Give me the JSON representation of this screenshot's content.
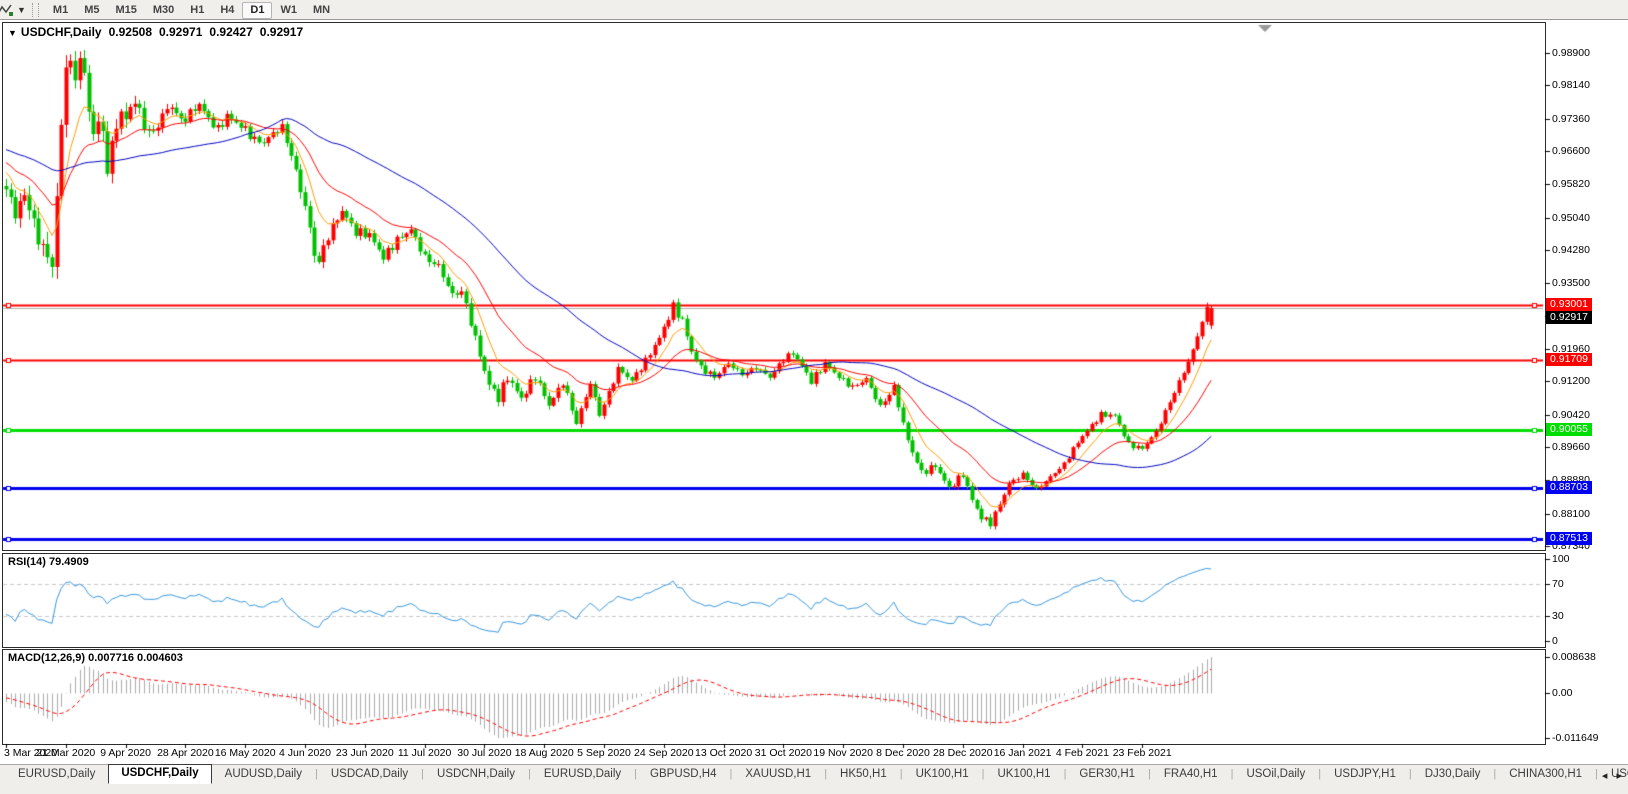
{
  "toolbar": {
    "timeframes": [
      "M1",
      "M5",
      "M15",
      "M30",
      "H1",
      "H4",
      "D1",
      "W1",
      "MN"
    ],
    "active_timeframe": "D1"
  },
  "chart_header": {
    "symbol": "USDCHF,Daily",
    "open": "0.92508",
    "high": "0.92971",
    "low": "0.92427",
    "close": "0.92917"
  },
  "indicators": {
    "rsi_label": "RSI(14) 79.4909",
    "macd_label": "MACD(12,26,9) 0.007716 0.004603"
  },
  "axes": {
    "price_ticks": [
      "0.98900",
      "0.98140",
      "0.97360",
      "0.96600",
      "0.95820",
      "0.95040",
      "0.94280",
      "0.93500",
      "0.92740",
      "0.91960",
      "0.91200",
      "0.90420",
      "0.89660",
      "0.88880",
      "0.88100",
      "0.87340"
    ],
    "rsi_ticks": [
      {
        "value": 100,
        "label": "100"
      },
      {
        "value": 70,
        "label": "70"
      },
      {
        "value": 30,
        "label": "30"
      },
      {
        "value": 0,
        "label": "0"
      }
    ],
    "macd_ticks": {
      "top": "0.008638",
      "zero": "0.00",
      "bottom": "-0.011649"
    },
    "dates": [
      "3 Mar 2020",
      "21 Mar 2020",
      "9 Apr 2020",
      "28 Apr 2020",
      "16 May 2020",
      "4 Jun 2020",
      "23 Jun 2020",
      "11 Jul 2020",
      "30 Jul 2020",
      "18 Aug 2020",
      "5 Sep 2020",
      "24 Sep 2020",
      "13 Oct 2020",
      "31 Oct 2020",
      "19 Nov 2020",
      "8 Dec 2020",
      "28 Dec 2020",
      "16 Jan 2021",
      "4 Feb 2021",
      "23 Feb 2021"
    ]
  },
  "chart_data": {
    "type": "candlestick",
    "title": "USDCHF,Daily",
    "visible_range_top": 0.996,
    "visible_range_bottom": 0.8727,
    "candle_count": 263,
    "gridline_every_n_candles": 13,
    "price_path_anchors": [
      [
        -60,
        0.98
      ],
      [
        -45,
        0.972
      ],
      [
        -30,
        0.966
      ],
      [
        -15,
        0.963
      ],
      [
        -8,
        0.967
      ],
      [
        -3,
        0.962
      ],
      [
        0,
        0.957
      ],
      [
        2,
        0.9515
      ],
      [
        4,
        0.9555
      ],
      [
        6,
        0.95
      ],
      [
        7,
        0.943
      ],
      [
        8,
        0.9465
      ],
      [
        9,
        0.9385
      ],
      [
        10,
        0.9405
      ],
      [
        11,
        0.955
      ],
      [
        12,
        0.972
      ],
      [
        13,
        0.985
      ],
      [
        14,
        0.989
      ],
      [
        15,
        0.98
      ],
      [
        16,
        0.99
      ],
      [
        17,
        0.983
      ],
      [
        18,
        0.9755
      ],
      [
        19,
        0.97
      ],
      [
        20,
        0.9735
      ],
      [
        21,
        0.969
      ],
      [
        22,
        0.963
      ],
      [
        23,
        0.9665
      ],
      [
        24,
        0.972
      ],
      [
        25,
        0.9755
      ],
      [
        26,
        0.973
      ],
      [
        27,
        0.9762
      ],
      [
        28,
        0.978
      ],
      [
        30,
        0.9718
      ],
      [
        32,
        0.97
      ],
      [
        34,
        0.9745
      ],
      [
        36,
        0.9766
      ],
      [
        38,
        0.973
      ],
      [
        40,
        0.9748
      ],
      [
        42,
        0.977
      ],
      [
        44,
        0.9736
      ],
      [
        46,
        0.971
      ],
      [
        48,
        0.9742
      ],
      [
        50,
        0.9726
      ],
      [
        52,
        0.971
      ],
      [
        54,
        0.9686
      ],
      [
        56,
        0.968
      ],
      [
        58,
        0.9702
      ],
      [
        60,
        0.9716
      ],
      [
        62,
        0.965
      ],
      [
        63,
        0.961
      ],
      [
        65,
        0.953
      ],
      [
        67,
        0.942
      ],
      [
        68,
        0.94
      ],
      [
        70,
        0.9462
      ],
      [
        73,
        0.952
      ],
      [
        76,
        0.947
      ],
      [
        79,
        0.9464
      ],
      [
        82,
        0.941
      ],
      [
        85,
        0.9452
      ],
      [
        88,
        0.9476
      ],
      [
        91,
        0.941
      ],
      [
        94,
        0.939
      ],
      [
        97,
        0.9322
      ],
      [
        99,
        0.9332
      ],
      [
        101,
        0.926
      ],
      [
        103,
        0.918
      ],
      [
        105,
        0.9112
      ],
      [
        107,
        0.9082
      ],
      [
        109,
        0.913
      ],
      [
        112,
        0.908
      ],
      [
        115,
        0.9132
      ],
      [
        118,
        0.9064
      ],
      [
        121,
        0.9118
      ],
      [
        124,
        0.9022
      ],
      [
        127,
        0.9116
      ],
      [
        129,
        0.9042
      ],
      [
        131,
        0.9092
      ],
      [
        133,
        0.915
      ],
      [
        136,
        0.9122
      ],
      [
        139,
        0.9168
      ],
      [
        142,
        0.9222
      ],
      [
        145,
        0.9295
      ],
      [
        147,
        0.9262
      ],
      [
        149,
        0.919
      ],
      [
        151,
        0.9152
      ],
      [
        154,
        0.913
      ],
      [
        157,
        0.9162
      ],
      [
        160,
        0.9136
      ],
      [
        163,
        0.9152
      ],
      [
        166,
        0.913
      ],
      [
        169,
        0.9172
      ],
      [
        171,
        0.9186
      ],
      [
        173,
        0.9156
      ],
      [
        175,
        0.912
      ],
      [
        178,
        0.9162
      ],
      [
        181,
        0.913
      ],
      [
        184,
        0.9106
      ],
      [
        187,
        0.9126
      ],
      [
        190,
        0.906
      ],
      [
        193,
        0.9106
      ],
      [
        196,
        0.898
      ],
      [
        199,
        0.8906
      ],
      [
        202,
        0.8922
      ],
      [
        205,
        0.887
      ],
      [
        208,
        0.8902
      ],
      [
        210,
        0.8842
      ],
      [
        212,
        0.88
      ],
      [
        214,
        0.8788
      ],
      [
        216,
        0.8832
      ],
      [
        218,
        0.888
      ],
      [
        221,
        0.8902
      ],
      [
        224,
        0.8866
      ],
      [
        227,
        0.8896
      ],
      [
        230,
        0.8926
      ],
      [
        232,
        0.8962
      ],
      [
        234,
        0.8992
      ],
      [
        238,
        0.9042
      ],
      [
        241,
        0.904
      ],
      [
        244,
        0.8972
      ],
      [
        247,
        0.8962
      ],
      [
        250,
        0.9002
      ],
      [
        253,
        0.9072
      ],
      [
        256,
        0.9142
      ],
      [
        258,
        0.9192
      ],
      [
        260,
        0.9262
      ],
      [
        261,
        0.9288
      ],
      [
        262,
        0.9292
      ]
    ],
    "volatility_anchors": [
      [
        -60,
        0.003
      ],
      [
        0,
        0.005
      ],
      [
        7,
        0.007
      ],
      [
        12,
        0.0085
      ],
      [
        16,
        0.006
      ],
      [
        22,
        0.0065
      ],
      [
        32,
        0.004
      ],
      [
        44,
        0.0028
      ],
      [
        60,
        0.0026
      ],
      [
        66,
        0.0048
      ],
      [
        72,
        0.003
      ],
      [
        82,
        0.0026
      ],
      [
        97,
        0.003
      ],
      [
        104,
        0.0034
      ],
      [
        112,
        0.0028
      ],
      [
        126,
        0.0024
      ],
      [
        140,
        0.002
      ],
      [
        145,
        0.0026
      ],
      [
        158,
        0.0018
      ],
      [
        172,
        0.002
      ],
      [
        186,
        0.0018
      ],
      [
        196,
        0.0026
      ],
      [
        205,
        0.002
      ],
      [
        214,
        0.0022
      ],
      [
        226,
        0.0014
      ],
      [
        240,
        0.0016
      ],
      [
        250,
        0.0016
      ],
      [
        258,
        0.0022
      ],
      [
        262,
        0.0022
      ]
    ],
    "last_candle": {
      "open": 0.92508,
      "high": 0.92971,
      "low": 0.92427,
      "close": 0.92917
    },
    "hlines": [
      {
        "price": 0.93001,
        "label": "0.93001",
        "color": "#ff0000",
        "width": 2
      },
      {
        "price": 0.91709,
        "label": "0.91709",
        "color": "#ff0000",
        "width": 2
      },
      {
        "price": 0.90055,
        "label": "0.90055",
        "color": "#00dd00",
        "width": 3
      },
      {
        "price": 0.88703,
        "label": "0.88703",
        "color": "#0000f0",
        "width": 3
      },
      {
        "price": 0.87513,
        "label": "0.87513",
        "color": "#0000f0",
        "width": 3
      }
    ],
    "current_price": {
      "value": 0.92917,
      "label": "0.92917"
    },
    "moving_averages": [
      {
        "period": 8,
        "type": "ema",
        "color": "#ff9c00"
      },
      {
        "period": 21,
        "type": "ema",
        "color": "#ff0000"
      },
      {
        "period": 50,
        "type": "sma",
        "color": "#0000c0"
      }
    ],
    "rsi": {
      "period": 14,
      "value": "79.4909",
      "levels": [
        70,
        30
      ],
      "range": [
        0,
        100
      ]
    },
    "macd": {
      "fast": 12,
      "slow": 26,
      "signal": 9,
      "macd_value": "0.007716",
      "signal_value": "0.004603"
    },
    "colors": {
      "up": "#ff0000",
      "down": "#00c000",
      "rsi_line": "#3a96dd",
      "rsi_level": "#c8c8c8",
      "macd_hist": "#ababab",
      "macd_signal": "#ff0000",
      "current_price_line": "#b0b0b0",
      "current_price_badge": "#000000",
      "shift_marker": "#9a9a9a"
    }
  },
  "tabs": {
    "items": [
      "EURUSD,Daily",
      "USDCHF,Daily",
      "AUDUSD,Daily",
      "USDCAD,Daily",
      "USDCNH,Daily",
      "EURUSD,Daily",
      "GBPUSD,H4",
      "XAUUSD,H1",
      "HK50,H1",
      "UK100,H1",
      "UK100,H1",
      "GER30,H1",
      "FRA40,H1",
      "USOil,Daily",
      "USDJPY,H1",
      "DJ30,Daily",
      "CHINA300,H1",
      "USOil,"
    ],
    "active_index": 1,
    "scroll_left": "◂",
    "scroll_right": "▸"
  }
}
